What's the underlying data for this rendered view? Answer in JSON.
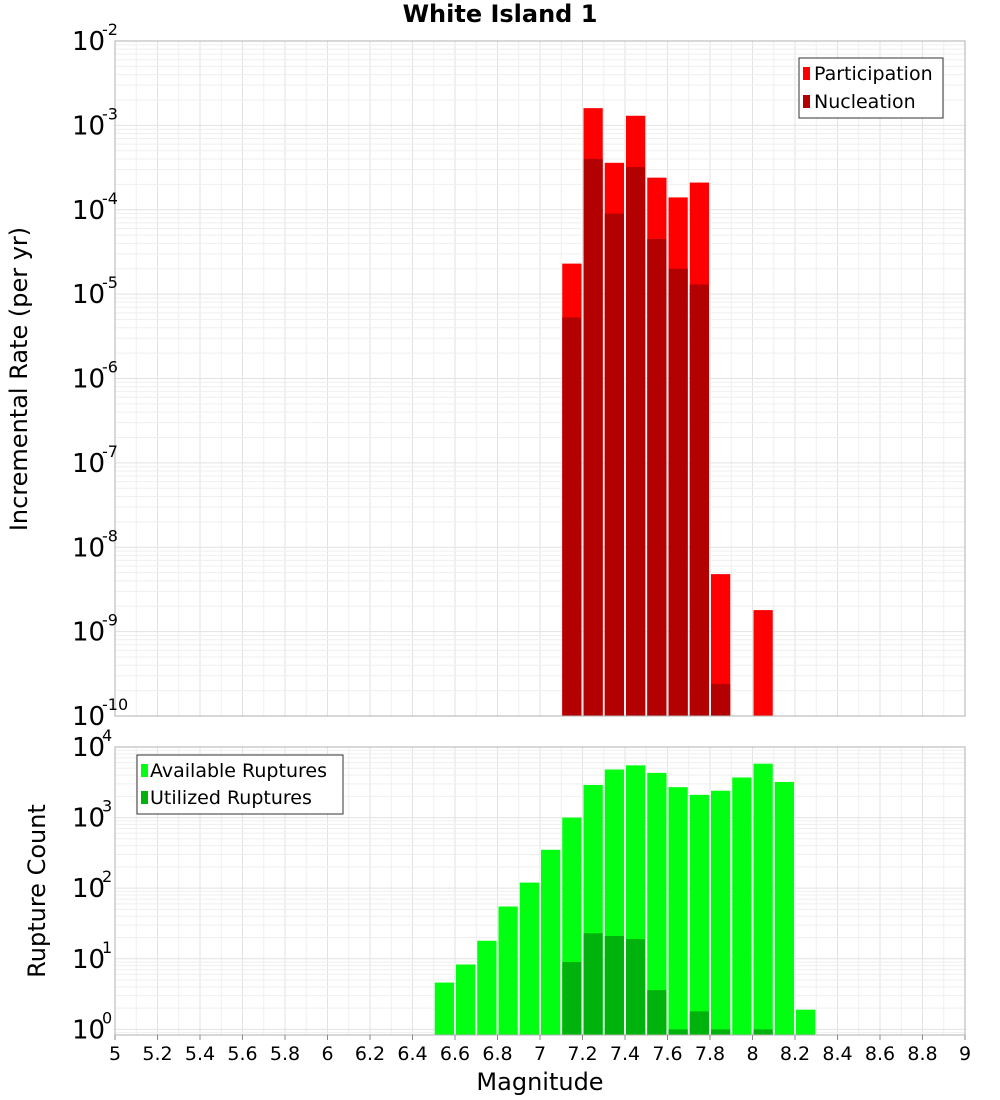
{
  "chart_data": [
    {
      "type": "bar",
      "title": "White Island 1",
      "ylabel": "Incremental Rate (per yr)",
      "xlabel": "",
      "yscale": "log",
      "ylim_exp": [
        -10,
        -2
      ],
      "ytick_exps": [
        -10,
        -9,
        -8,
        -7,
        -6,
        -5,
        -4,
        -3,
        -2
      ],
      "legend_placement": "top-right",
      "grid": true,
      "series": [
        {
          "name": "Participation",
          "color": "#ff0000",
          "points": [
            {
              "x": 7.15,
              "y": 2.3e-05
            },
            {
              "x": 7.25,
              "y": 0.0016
            },
            {
              "x": 7.35,
              "y": 0.00036
            },
            {
              "x": 7.45,
              "y": 0.0013
            },
            {
              "x": 7.55,
              "y": 0.00024
            },
            {
              "x": 7.65,
              "y": 0.00014
            },
            {
              "x": 7.75,
              "y": 0.00021
            },
            {
              "x": 7.85,
              "y": 4.8e-09
            },
            {
              "x": 8.05,
              "y": 1.8e-09
            }
          ]
        },
        {
          "name": "Nucleation",
          "color": "#b30000",
          "points": [
            {
              "x": 7.15,
              "y": 5.3e-06
            },
            {
              "x": 7.25,
              "y": 0.0004
            },
            {
              "x": 7.35,
              "y": 9e-05
            },
            {
              "x": 7.45,
              "y": 0.00032
            },
            {
              "x": 7.55,
              "y": 4.5e-05
            },
            {
              "x": 7.65,
              "y": 2e-05
            },
            {
              "x": 7.75,
              "y": 1.3e-05
            },
            {
              "x": 7.85,
              "y": 2.4e-10
            },
            {
              "x": 8.05,
              "y": 1e-10
            }
          ]
        }
      ]
    },
    {
      "type": "bar",
      "title": "",
      "ylabel": "Rupture Count",
      "xlabel": "Magnitude",
      "yscale": "log",
      "ylim_exp": [
        -0.08,
        4
      ],
      "ytick_exps": [
        0,
        1,
        2,
        3,
        4
      ],
      "xlim": [
        5,
        9
      ],
      "xticks": [
        "5",
        "5.2",
        "5.4",
        "5.6",
        "5.8",
        "6",
        "6.2",
        "6.4",
        "6.6",
        "6.8",
        "7",
        "7.2",
        "7.4",
        "7.6",
        "7.8",
        "8",
        "8.2",
        "8.4",
        "8.6",
        "8.8",
        "9"
      ],
      "legend_placement": "top-left",
      "grid": true,
      "series": [
        {
          "name": "Available Ruptures",
          "color": "#00ff11",
          "points": [
            {
              "x": 6.55,
              "y": 4.6
            },
            {
              "x": 6.65,
              "y": 8.3
            },
            {
              "x": 6.75,
              "y": 18
            },
            {
              "x": 6.85,
              "y": 55
            },
            {
              "x": 6.95,
              "y": 120
            },
            {
              "x": 7.05,
              "y": 350
            },
            {
              "x": 7.15,
              "y": 1000
            },
            {
              "x": 7.25,
              "y": 2900
            },
            {
              "x": 7.35,
              "y": 4800
            },
            {
              "x": 7.45,
              "y": 5500
            },
            {
              "x": 7.55,
              "y": 4300
            },
            {
              "x": 7.65,
              "y": 2700
            },
            {
              "x": 7.75,
              "y": 2100
            },
            {
              "x": 7.85,
              "y": 2400
            },
            {
              "x": 7.95,
              "y": 3700
            },
            {
              "x": 8.05,
              "y": 5800
            },
            {
              "x": 8.15,
              "y": 3200
            },
            {
              "x": 8.25,
              "y": 1.9
            }
          ]
        },
        {
          "name": "Utilized Ruptures",
          "color": "#00b30c",
          "points": [
            {
              "x": 7.15,
              "y": 9.0
            },
            {
              "x": 7.25,
              "y": 23
            },
            {
              "x": 7.35,
              "y": 21
            },
            {
              "x": 7.45,
              "y": 19
            },
            {
              "x": 7.55,
              "y": 3.6
            },
            {
              "x": 7.65,
              "y": 1.0
            },
            {
              "x": 7.75,
              "y": 1.8
            },
            {
              "x": 7.85,
              "y": 1.0
            },
            {
              "x": 8.05,
              "y": 1.0
            }
          ]
        }
      ]
    }
  ]
}
